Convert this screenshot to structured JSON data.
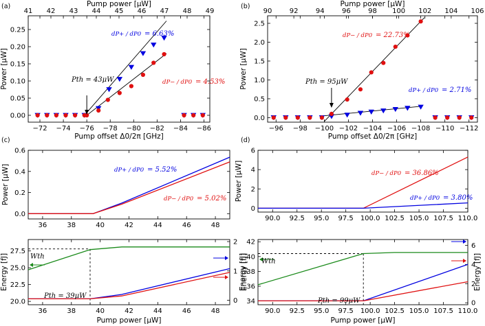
{
  "colors": {
    "plus": "#0000e0",
    "minus": "#e01010",
    "energy": "#1a8a1a",
    "axis": "#000000"
  },
  "chart_data": [
    {
      "panel_label": "(a)",
      "type": "scatter",
      "xlabel": "Pump offset Δ0/2π [GHz]",
      "ylabel": "Power [μW]",
      "top_xlabel": "Pump power [μW]",
      "xlim": [
        -71,
        -86.5
      ],
      "ylim": [
        -0.02,
        0.29
      ],
      "top_xlim": [
        41,
        49
      ],
      "xticks": [
        -72,
        -74,
        -76,
        -78,
        -80,
        -82,
        -84,
        -86
      ],
      "xtick_labels": [
        "−72",
        "−74",
        "−76",
        "−78",
        "−80",
        "−82",
        "−84",
        "−86"
      ],
      "yticks": [
        0.0,
        0.05,
        0.1,
        0.15,
        0.2,
        0.25
      ],
      "ytick_labels": [
        "0.00",
        "0.05",
        "0.10",
        "0.15",
        "0.20",
        "0.25"
      ],
      "top_xticks": [
        41,
        42,
        43,
        44,
        45,
        46,
        47,
        48,
        49
      ],
      "top_xtick_labels": [
        "41",
        "42",
        "43",
        "44",
        "45",
        "46",
        "47",
        "48",
        "49"
      ],
      "series": [
        {
          "key": "plus",
          "marker": "triangle-down",
          "x": [
            -71.8,
            -72.6,
            -73.4,
            -74.2,
            -75.0,
            -75.8,
            -77.0,
            -77.9,
            -78.8,
            -79.8,
            -80.8,
            -81.7,
            -82.6,
            -84.3,
            -85.1,
            -85.9
          ],
          "y": [
            0.0,
            0.0,
            0.0,
            0.0,
            0.0,
            0.0,
            0.02,
            0.075,
            0.105,
            0.14,
            0.18,
            0.205,
            0.225,
            0.0,
            0.0,
            0.0
          ]
        },
        {
          "key": "minus",
          "marker": "circle",
          "x": [
            -71.8,
            -72.6,
            -73.4,
            -74.2,
            -75.0,
            -75.8,
            -76.0,
            -77.0,
            -77.8,
            -78.8,
            -79.8,
            -80.8,
            -81.7,
            -82.6,
            -84.3,
            -85.1,
            -85.9
          ],
          "y": [
            0.0,
            0.0,
            0.0,
            0.0,
            0.0,
            0.0,
            0.0,
            0.014,
            0.045,
            0.065,
            0.085,
            0.118,
            0.153,
            0.178,
            0.0,
            0.0,
            0.0
          ]
        }
      ],
      "fit_lines": [
        {
          "key": "plus",
          "x": [
            -75.8,
            -82.8
          ],
          "y": [
            0.0,
            0.275
          ]
        },
        {
          "key": "minus",
          "x": [
            -76.0,
            -82.8
          ],
          "y": [
            0.0,
            0.18
          ]
        }
      ],
      "annotations": {
        "plus_fraction": "dP+ / dP0",
        "plus_value": "= 6.63%",
        "minus_fraction": "dP− / dP0",
        "minus_value": "= 4.53%",
        "threshold": "Pth = 43μW"
      }
    },
    {
      "panel_label": "(b)",
      "type": "scatter",
      "xlabel": "Pump offset Δ0/2π [GHz]",
      "ylabel": "Power [μW]",
      "top_xlabel": "Pump power [μW]",
      "xlim": [
        -95.3,
        -112.7
      ],
      "ylim": [
        -0.12,
        2.7
      ],
      "top_xlim": [
        90,
        106
      ],
      "xticks": [
        -96,
        -98,
        -100,
        -102,
        -104,
        -106,
        -108,
        -110,
        -112
      ],
      "xtick_labels": [
        "−96",
        "−98",
        "−100",
        "−102",
        "−104",
        "−106",
        "−108",
        "−110",
        "−112"
      ],
      "yticks": [
        0.0,
        0.5,
        1.0,
        1.5,
        2.0,
        2.5
      ],
      "ytick_labels": [
        "0.0",
        "0.5",
        "1.0",
        "1.5",
        "2.0",
        "2.5"
      ],
      "top_xticks": [
        90,
        92,
        94,
        96,
        98,
        100,
        102,
        104,
        106
      ],
      "top_xtick_labels": [
        "90",
        "92",
        "94",
        "96",
        "98",
        "100",
        "102",
        "104",
        "106"
      ],
      "series": [
        {
          "key": "plus",
          "marker": "triangle-down",
          "x": [
            -95.8,
            -96.8,
            -97.8,
            -98.8,
            -99.8,
            -100.6,
            -101.9,
            -103.0,
            -103.9,
            -104.9,
            -105.9,
            -106.9,
            -108.0,
            -109.2,
            -110.2,
            -111.2,
            -112.2
          ],
          "y": [
            0.0,
            0.0,
            0.0,
            0.0,
            0.0,
            0.03,
            0.07,
            0.12,
            0.15,
            0.18,
            0.22,
            0.25,
            0.28,
            0.0,
            0.0,
            0.0,
            0.0
          ]
        },
        {
          "key": "minus",
          "marker": "circle",
          "x": [
            -95.8,
            -96.8,
            -97.8,
            -98.8,
            -99.8,
            -100.6,
            -101.9,
            -103.0,
            -103.9,
            -104.9,
            -105.9,
            -106.9,
            -108.0,
            -109.2,
            -110.2,
            -111.2,
            -112.2
          ],
          "y": [
            0.0,
            0.0,
            0.0,
            0.0,
            0.0,
            0.1,
            0.48,
            0.75,
            1.2,
            1.45,
            1.88,
            2.18,
            2.55,
            0.0,
            0.0,
            0.0,
            0.0
          ]
        }
      ],
      "fit_lines": [
        {
          "key": "minus",
          "x": [
            -100.0,
            -108.3
          ],
          "y": [
            -0.1,
            2.65
          ]
        },
        {
          "key": "plus",
          "x": [
            -100.0,
            -108.0
          ],
          "y": [
            0.05,
            0.3
          ]
        }
      ],
      "annotations": {
        "minus_fraction": "dP− / dP0",
        "minus_value": "= 22.73%",
        "plus_fraction": "dP+ / dP0",
        "plus_value": "= 2.71%",
        "threshold": "Pth = 95μW"
      }
    },
    {
      "panel_label": "(c)",
      "type": "line",
      "xlabel": "",
      "ylabel": "Power [μW]",
      "xlim": [
        35,
        49
      ],
      "ylim": [
        -0.05,
        0.6
      ],
      "xticks": [
        36,
        38,
        40,
        42,
        44,
        46,
        48
      ],
      "xtick_labels": [
        "36",
        "38",
        "40",
        "42",
        "44",
        "46",
        "48"
      ],
      "yticks": [
        0.0,
        0.2,
        0.4,
        0.6
      ],
      "ytick_labels": [
        "0.0",
        "0.2",
        "0.4",
        "0.6"
      ],
      "series": [
        {
          "key": "plus",
          "x": [
            35,
            39.5,
            41.5,
            49
          ],
          "y": [
            0.0,
            0.0,
            0.1,
            0.535
          ]
        },
        {
          "key": "minus",
          "x": [
            35,
            39.5,
            41.5,
            49
          ],
          "y": [
            0.0,
            0.0,
            0.09,
            0.49
          ]
        }
      ],
      "annotations": {
        "plus_fraction": "dP+ / dP0",
        "plus_value": "= 5.52%",
        "minus_fraction": "dP− / dP0",
        "minus_value": "= 5.02%"
      }
    },
    {
      "panel_label": "(d)",
      "type": "line",
      "xlabel": "",
      "ylabel": "Power [μW]",
      "xlim": [
        88.5,
        110
      ],
      "ylim": [
        -0.4,
        6
      ],
      "xticks": [
        90,
        92.5,
        95,
        97.5,
        100,
        102.5,
        105,
        107.5,
        110
      ],
      "xtick_labels": [
        "90.0",
        "92.5",
        "95.0",
        "97.5",
        "100.0",
        "102.5",
        "105.0",
        "107.5",
        "110.0"
      ],
      "yticks": [
        0,
        2,
        4,
        6
      ],
      "ytick_labels": [
        "0",
        "2",
        "4",
        "6"
      ],
      "series": [
        {
          "key": "minus",
          "x": [
            88.5,
            99.3,
            110
          ],
          "y": [
            0.0,
            0.0,
            5.3
          ]
        },
        {
          "key": "plus",
          "x": [
            88.5,
            99.3,
            110
          ],
          "y": [
            0.0,
            0.0,
            0.55
          ]
        }
      ],
      "annotations": {
        "minus_fraction": "dP− / dP0",
        "minus_value": "= 36.86%",
        "plus_fraction": "dP+ / dP0",
        "plus_value": "= 3.80%"
      }
    },
    {
      "panel_label": "",
      "type": "line",
      "xlabel": "Pump power [μW]",
      "ylabel": "Energy [fJ]",
      "ylabel_right": "Energy [fJ]",
      "xlim": [
        35,
        49
      ],
      "ylim": [
        19.5,
        29.2
      ],
      "ylim_right": [
        -0.15,
        2.07
      ],
      "xticks": [
        36,
        38,
        40,
        42,
        44,
        46,
        48
      ],
      "xtick_labels": [
        "36",
        "38",
        "40",
        "42",
        "44",
        "46",
        "48"
      ],
      "yticks": [
        20.0,
        22.5,
        25.0,
        27.5
      ],
      "ytick_labels": [
        "20.0",
        "22.5",
        "25.0",
        "27.5"
      ],
      "yticks_right": [
        0,
        1,
        2
      ],
      "ytick_labels_right": [
        "0",
        "1",
        "2"
      ],
      "series": [
        {
          "key": "energy",
          "axis": "left",
          "x": [
            35,
            39.3,
            41.5,
            49
          ],
          "y": [
            24.7,
            27.7,
            28.1,
            28.1
          ]
        },
        {
          "key": "plus",
          "axis": "right",
          "x": [
            35,
            39.3,
            41.5,
            49
          ],
          "y": [
            0.05,
            0.05,
            0.2,
            1.08
          ]
        },
        {
          "key": "minus",
          "axis": "right",
          "x": [
            35,
            39.3,
            41.5,
            49
          ],
          "y": [
            0.05,
            0.05,
            0.15,
            0.95
          ]
        }
      ],
      "threshold_x": 39.3,
      "threshold_y": 27.8,
      "annotations": {
        "wth": "Wth",
        "threshold": "Pth = 39μW"
      }
    },
    {
      "panel_label": "",
      "type": "line",
      "xlabel": "Pump power [μW]",
      "ylabel": "Energy [fJ]",
      "ylabel_right": "Energy [fJ]",
      "xlim": [
        88.5,
        110
      ],
      "ylim": [
        33.5,
        42.3
      ],
      "ylim_right": [
        -0.2,
        6.6
      ],
      "xticks": [
        90,
        92.5,
        95,
        97.5,
        100,
        102.5,
        105,
        107.5,
        110
      ],
      "xtick_labels": [
        "90.0",
        "92.5",
        "95.0",
        "97.5",
        "100.0",
        "102.5",
        "105.0",
        "107.5",
        "110.0"
      ],
      "yticks": [
        34,
        36,
        38,
        40,
        42
      ],
      "ytick_labels": [
        "34",
        "36",
        "38",
        "40",
        "42"
      ],
      "yticks_right": [
        0,
        2,
        4,
        6
      ],
      "ytick_labels_right": [
        "0",
        "2",
        "4",
        "6"
      ],
      "series": [
        {
          "key": "energy",
          "axis": "left",
          "x": [
            88.5,
            99.3,
            102.5,
            110
          ],
          "y": [
            36.2,
            40.4,
            40.55,
            40.55
          ]
        },
        {
          "key": "plus",
          "axis": "right",
          "x": [
            88.5,
            99.3,
            110
          ],
          "y": [
            0.2,
            0.2,
            4.0
          ]
        },
        {
          "key": "minus",
          "axis": "right",
          "x": [
            88.5,
            99.3,
            110
          ],
          "y": [
            0.2,
            0.2,
            2.2
          ]
        }
      ],
      "threshold_x": 99.3,
      "threshold_y": 40.4,
      "annotations": {
        "wth": "Wth",
        "threshold": "Pth = 99μW"
      }
    }
  ]
}
